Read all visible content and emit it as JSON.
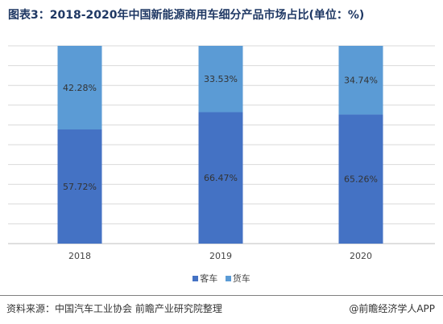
{
  "title": "图表3：2018-2020年中国新能源商用车细分产品市场占比(单位：%)",
  "source": "资料来源：中国汽车工业协会 前瞻产业研究院整理",
  "brand": "@前瞻经济学人APP",
  "colors": {
    "passenger": "#4472c4",
    "cargo": "#5b9bd5",
    "grid": "#d9d9d9",
    "axis": "#bfbfbf"
  },
  "chart_data": {
    "type": "bar",
    "stacked": true,
    "categories": [
      "2018",
      "2019",
      "2020"
    ],
    "series": [
      {
        "name": "客车",
        "values": [
          57.72,
          66.47,
          65.26
        ],
        "labels": [
          "57.72%",
          "66.47%",
          "65.26%"
        ]
      },
      {
        "name": "货车",
        "values": [
          42.28,
          33.53,
          34.74
        ],
        "labels": [
          "42.28%",
          "33.53%",
          "34.74%"
        ]
      }
    ],
    "ylim": [
      0,
      100
    ],
    "grid": true,
    "legend": "bottom"
  }
}
